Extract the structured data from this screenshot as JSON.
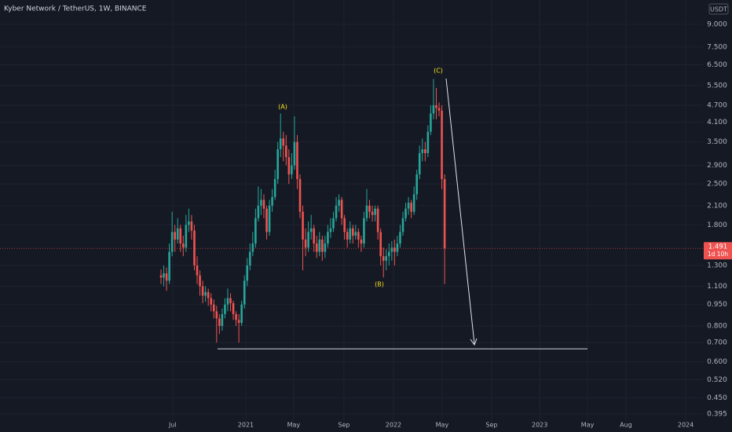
{
  "chart_data": {
    "type": "candlestick",
    "title": "Kyber Network / TetherUS, 1W, BINANCE",
    "currency": "USDT",
    "log": true,
    "grid": true,
    "up_color": "#26a69a",
    "down_color": "#ef5350",
    "annotations": [
      "(A)",
      "(B)",
      "(C)"
    ],
    "last_label": "1.491",
    "countdown": "1d 10h",
    "hline": 0.666,
    "open": [
      1.2,
      1.18,
      1.22,
      1.15,
      1.45,
      1.7,
      1.6,
      1.75,
      1.55,
      1.5,
      1.8,
      1.85,
      1.72,
      1.3,
      1.2,
      1.1,
      1.02,
      1.05,
      1.0,
      0.95,
      0.9,
      0.85,
      0.8,
      0.88,
      0.95,
      1.0,
      0.96,
      0.88,
      0.84,
      0.82,
      0.95,
      1.15,
      1.3,
      1.45,
      1.55,
      1.9,
      2.1,
      2.2,
      2.05,
      1.7,
      2.1,
      2.25,
      2.6,
      3.3,
      3.6,
      3.4,
      3.1,
      2.7,
      2.9,
      3.5,
      2.6,
      2.0,
      1.6,
      1.5,
      1.7,
      1.75,
      1.55,
      1.45,
      1.6,
      1.45,
      1.55,
      1.7,
      1.75,
      1.9,
      2.1,
      2.2,
      1.9,
      1.7,
      1.6,
      1.75,
      1.65,
      1.7,
      1.6,
      1.55,
      1.9,
      2.1,
      2.0,
      1.95,
      2.05,
      1.7,
      1.4,
      1.35,
      1.4,
      1.45,
      1.5,
      1.45,
      1.55,
      1.7,
      1.9,
      2.05,
      2.15,
      2.0,
      2.3,
      2.7,
      3.2,
      3.3,
      3.2,
      3.8,
      4.4,
      4.7,
      4.6,
      4.5,
      2.6
    ],
    "high": [
      1.26,
      1.3,
      1.28,
      1.55,
      2.0,
      1.8,
      1.9,
      1.8,
      1.65,
      1.95,
      2.05,
      1.95,
      1.8,
      1.4,
      1.25,
      1.15,
      1.1,
      1.08,
      1.04,
      0.99,
      0.94,
      0.88,
      0.92,
      1.0,
      1.08,
      1.04,
      0.98,
      0.9,
      0.88,
      0.98,
      1.2,
      1.38,
      1.55,
      1.7,
      2.05,
      2.45,
      2.4,
      2.3,
      2.1,
      2.2,
      2.4,
      2.8,
      3.5,
      4.4,
      3.8,
      3.7,
      3.3,
      3.2,
      4.3,
      3.7,
      2.7,
      2.1,
      1.75,
      1.85,
      1.95,
      1.8,
      1.65,
      1.7,
      1.65,
      1.65,
      1.8,
      1.9,
      2.0,
      2.25,
      2.3,
      2.25,
      1.95,
      1.75,
      1.85,
      1.8,
      1.8,
      1.75,
      1.65,
      2.0,
      2.4,
      2.2,
      2.1,
      2.1,
      2.1,
      1.75,
      1.5,
      1.48,
      1.55,
      1.58,
      1.6,
      1.65,
      1.8,
      2.0,
      2.15,
      2.25,
      2.2,
      2.45,
      2.8,
      3.4,
      3.6,
      3.5,
      4.0,
      4.7,
      5.8,
      5.4,
      4.8,
      4.7,
      2.7
    ],
    "low": [
      1.12,
      1.1,
      1.06,
      1.12,
      1.4,
      1.45,
      1.55,
      1.45,
      1.4,
      1.45,
      1.7,
      1.6,
      1.25,
      1.12,
      1.02,
      0.96,
      0.97,
      0.94,
      0.9,
      0.85,
      0.7,
      0.75,
      0.77,
      0.85,
      0.9,
      0.9,
      0.84,
      0.8,
      0.7,
      0.8,
      0.92,
      1.1,
      1.25,
      1.4,
      1.5,
      1.85,
      1.95,
      1.9,
      1.6,
      1.65,
      2.0,
      2.2,
      2.5,
      3.1,
      3.0,
      2.9,
      2.5,
      2.6,
      2.8,
      2.4,
      1.9,
      1.25,
      1.4,
      1.45,
      1.6,
      1.45,
      1.38,
      1.4,
      1.35,
      1.38,
      1.5,
      1.62,
      1.7,
      1.85,
      2.0,
      1.8,
      1.6,
      1.5,
      1.55,
      1.55,
      1.6,
      1.5,
      1.45,
      1.5,
      1.85,
      1.9,
      1.85,
      1.85,
      1.6,
      1.3,
      1.18,
      1.25,
      1.3,
      1.35,
      1.3,
      1.4,
      1.5,
      1.65,
      1.85,
      1.95,
      1.9,
      1.95,
      2.2,
      2.6,
      3.0,
      3.0,
      3.1,
      3.7,
      4.2,
      4.2,
      4.3,
      2.4,
      1.12
    ],
    "close": [
      1.18,
      1.22,
      1.15,
      1.45,
      1.7,
      1.6,
      1.75,
      1.55,
      1.5,
      1.8,
      1.85,
      1.72,
      1.3,
      1.2,
      1.1,
      1.02,
      1.05,
      1.0,
      0.95,
      0.9,
      0.85,
      0.8,
      0.88,
      0.95,
      1.0,
      0.96,
      0.88,
      0.84,
      0.82,
      0.95,
      1.15,
      1.3,
      1.45,
      1.55,
      1.9,
      2.1,
      2.2,
      2.05,
      1.7,
      2.1,
      2.25,
      2.6,
      3.3,
      3.6,
      3.4,
      3.1,
      2.7,
      2.9,
      3.5,
      2.6,
      2.0,
      1.6,
      1.5,
      1.7,
      1.75,
      1.55,
      1.45,
      1.6,
      1.45,
      1.55,
      1.7,
      1.75,
      1.9,
      2.1,
      2.2,
      1.9,
      1.7,
      1.6,
      1.75,
      1.65,
      1.7,
      1.6,
      1.55,
      1.9,
      2.1,
      2.0,
      1.95,
      2.05,
      1.7,
      1.4,
      1.35,
      1.4,
      1.45,
      1.5,
      1.45,
      1.55,
      1.7,
      1.9,
      2.05,
      2.15,
      2.0,
      2.3,
      2.7,
      3.2,
      3.3,
      3.2,
      3.8,
      4.4,
      4.7,
      4.6,
      4.5,
      2.6,
      1.491
    ],
    "xlim": [
      -57.9,
      194.9
    ],
    "xticks": [
      {
        "value": 4.2,
        "label": "Jul"
      },
      {
        "value": 30.5,
        "label": "2021"
      },
      {
        "value": 47.7,
        "label": "May"
      },
      {
        "value": 65.8,
        "label": "Sep"
      },
      {
        "value": 83.6,
        "label": "2022"
      },
      {
        "value": 101.1,
        "label": "May"
      },
      {
        "value": 118.9,
        "label": "Sep"
      },
      {
        "value": 136.2,
        "label": "2023"
      },
      {
        "value": 153.4,
        "label": "May"
      },
      {
        "value": 167.2,
        "label": "Aug"
      },
      {
        "value": 188.7,
        "label": "2024"
      }
    ],
    "ylim": [
      0.364,
      10.93
    ],
    "yticks": [
      {
        "value": 9,
        "label": "9.000"
      },
      {
        "value": 7.5,
        "label": "7.500"
      },
      {
        "value": 6.5,
        "label": "6.500"
      },
      {
        "value": 5.5,
        "label": "5.500"
      },
      {
        "value": 4.7,
        "label": "4.700"
      },
      {
        "value": 4.1,
        "label": "4.100"
      },
      {
        "value": 3.5,
        "label": "3.500"
      },
      {
        "value": 2.9,
        "label": "2.900"
      },
      {
        "value": 2.5,
        "label": "2.500"
      },
      {
        "value": 2.1,
        "label": "2.100"
      },
      {
        "value": 1.8,
        "label": "1.800"
      },
      {
        "value": 1.3,
        "label": "1.300"
      },
      {
        "value": 1.1,
        "label": "1.100"
      },
      {
        "value": 0.95,
        "label": "0.950"
      },
      {
        "value": 0.8,
        "label": "0.800"
      },
      {
        "value": 0.7,
        "label": "0.700"
      },
      {
        "value": 0.6,
        "label": "0.600"
      },
      {
        "value": 0.52,
        "label": "0.520"
      },
      {
        "value": 0.45,
        "label": "0.450"
      },
      {
        "value": 0.395,
        "label": "0.395"
      }
    ]
  }
}
